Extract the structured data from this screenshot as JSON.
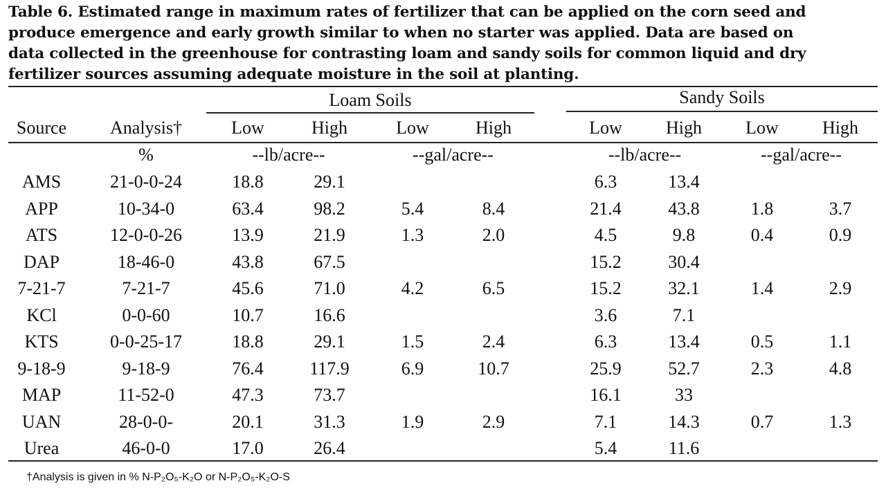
{
  "caption": {
    "lines": [
      "Table 6.  Estimated range in maximum rates of fertilizer that can be applied on the corn seed and",
      "produce emergence and early growth similar to when no starter was applied.  Data are based on",
      "data collected in the greenhouse for contrasting loam and sandy soils for common liquid and dry",
      "fertilizer sources assuming adequate moisture in the soil at planting."
    ]
  },
  "groups": {
    "loam": "Loam Soils",
    "sandy": "Sandy Soils"
  },
  "columns": [
    "Source",
    "Analysis†",
    "Low",
    "High",
    "Low",
    "High",
    "Low",
    "High",
    "Low",
    "High"
  ],
  "units": [
    "",
    "%",
    "--lb/acre--",
    "--gal/acre--",
    "--lb/acre--",
    "--gal/acre--"
  ],
  "rows": [
    [
      "AMS",
      "21-0-0-24",
      "18.8",
      "29.1",
      "",
      "",
      "6.3",
      "13.4",
      "",
      ""
    ],
    [
      "APP",
      "10-34-0",
      "63.4",
      "98.2",
      "5.4",
      "8.4",
      "21.4",
      "43.8",
      "1.8",
      "3.7"
    ],
    [
      "ATS",
      "12-0-0-26",
      "13.9",
      "21.9",
      "1.3",
      "2.0",
      "4.5",
      "9.8",
      "0.4",
      "0.9"
    ],
    [
      "DAP",
      "18-46-0",
      "43.8",
      "67.5",
      "",
      "",
      "15.2",
      "30.4",
      "",
      ""
    ],
    [
      "7-21-7",
      "7-21-7",
      "45.6",
      "71.0",
      "4.2",
      "6.5",
      "15.2",
      "32.1",
      "1.4",
      "2.9"
    ],
    [
      "KCl",
      "0-0-60",
      "10.7",
      "16.6",
      "",
      "",
      "3.6",
      "7.1",
      "",
      ""
    ],
    [
      "KTS",
      "0-0-25-17",
      "18.8",
      "29.1",
      "1.5",
      "2.4",
      "6.3",
      "13.4",
      "0.5",
      "1.1"
    ],
    [
      "9-18-9",
      "9-18-9",
      "76.4",
      "117.9",
      "6.9",
      "10.7",
      "25.9",
      "52.7",
      "2.3",
      "4.8"
    ],
    [
      "MAP",
      "11-52-0",
      "47.3",
      "73.7",
      "",
      "",
      "16.1",
      "33",
      "",
      ""
    ],
    [
      "UAN",
      "28-0-0-",
      "20.1",
      "31.3",
      "1.9",
      "2.9",
      "7.1",
      "14.3",
      "0.7",
      "1.3"
    ],
    [
      "Urea",
      "46-0-0",
      "17.0",
      "26.4",
      "",
      "",
      "5.4",
      "11.6",
      "",
      ""
    ]
  ],
  "footnote": "†Analysis is given in % N-P₂O₅-K₂O or N-P₂O₅-K₂O-S"
}
